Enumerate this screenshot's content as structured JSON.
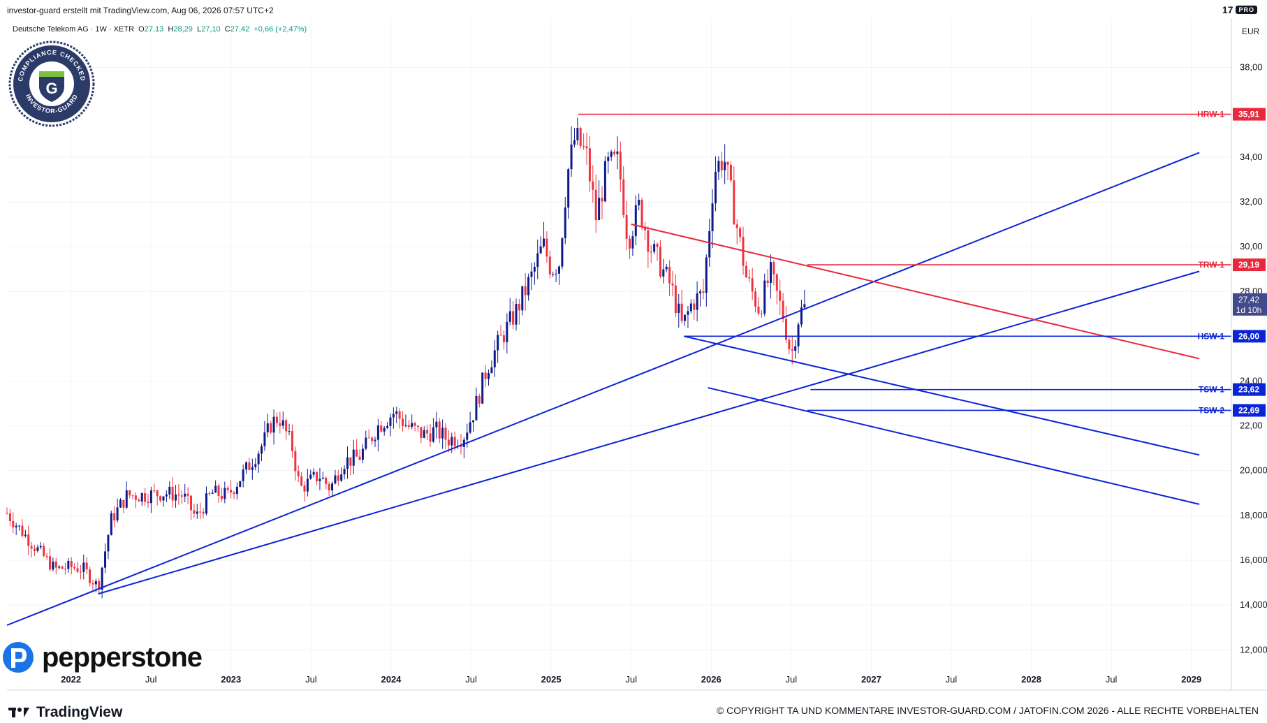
{
  "header": {
    "title": "investor-guard erstellt mit TradingView.com, Aug 06, 2026 07:57 UTC+2",
    "tv_brand": "17",
    "tv_pro": "PRO"
  },
  "symbol": {
    "name": "Deutsche Telekom AG · 1W · XETR",
    "open_label": "O",
    "open": "27,13",
    "high_label": "H",
    "high": "28,29",
    "low_label": "L",
    "low": "27,10",
    "close_label": "C",
    "close": "27,42",
    "change": "+0,66 (+2,47%)"
  },
  "price_axis": {
    "currency": "EUR",
    "ticks": [
      "38,00",
      "34,00",
      "32,00",
      "30,00",
      "28,00",
      "24,00",
      "22,00",
      "20,000",
      "18,000",
      "16,000",
      "14,000",
      "12,000"
    ]
  },
  "badge": {
    "top_text": "COMPLIANCE CHECKED",
    "bottom_text": "INVESTOR-GUARD",
    "letter": "G"
  },
  "footer": {
    "brand": "pepperstone",
    "tv": "TradingView",
    "copyright": "© COPYRIGHT TA UND KOMMENTARE INVESTOR-GUARD.COM / JATOFIN.COM 2026 - ALLE RECHTE VORBEHALTEN"
  },
  "colors": {
    "up": "#0d1b8a",
    "down": "#ef3340",
    "support": "#0b24d6",
    "resistance": "#e8283c",
    "current_price_bg": "#434a8c",
    "grid": "#f0f3fa"
  },
  "chart_data": {
    "type": "candlestick",
    "title": "Deutsche Telekom AG · 1W · XETR",
    "ylabel": "EUR",
    "ylim": [
      10.2,
      40.2
    ],
    "x_tick_labels": [
      "2022",
      "Jul",
      "2023",
      "Jul",
      "2024",
      "Jul",
      "2025",
      "Jul",
      "2026",
      "Jul",
      "2027",
      "Jul",
      "2028",
      "Jul",
      "2029"
    ],
    "x_tick_years": [
      2022.0,
      2022.5,
      2023.0,
      2023.5,
      2024.0,
      2024.5,
      2025.0,
      2025.5,
      2026.0,
      2026.5,
      2027.0,
      2027.5,
      2028.0,
      2028.5,
      2029.0
    ],
    "grid": true,
    "current_price": {
      "value": 27.42,
      "label": "27,42",
      "countdown": "1d 10h"
    },
    "levels": [
      {
        "name": "HRW-1",
        "value": 35.91,
        "label": "35,91",
        "kind": "resistance",
        "from": 2025.17
      },
      {
        "name": "TRW-1",
        "value": 29.19,
        "label": "29,19",
        "kind": "resistance",
        "from": 2026.6
      },
      {
        "name": "HSW-1",
        "value": 26.0,
        "label": "26,00",
        "kind": "support",
        "from": 2025.83
      },
      {
        "name": "TSW-1",
        "value": 23.62,
        "label": "23,62",
        "kind": "support",
        "from": 2026.62
      },
      {
        "name": "TSW-2",
        "value": 22.69,
        "label": "22,69",
        "kind": "support",
        "from": 2026.6
      }
    ],
    "trendlines": [
      {
        "kind": "support",
        "points": [
          [
            2021.6,
            13.1
          ],
          [
            2029.05,
            34.2
          ]
        ]
      },
      {
        "kind": "support",
        "points": [
          [
            2022.17,
            14.5
          ],
          [
            2029.05,
            28.9
          ]
        ]
      },
      {
        "kind": "resistance",
        "points": [
          [
            2025.5,
            31.0
          ],
          [
            2029.05,
            25.0
          ]
        ]
      },
      {
        "kind": "support",
        "points": [
          [
            2025.83,
            26.0
          ],
          [
            2029.05,
            20.7
          ]
        ]
      },
      {
        "kind": "support",
        "points": [
          [
            2025.98,
            23.7
          ],
          [
            2029.05,
            18.5
          ]
        ]
      }
    ],
    "price_path": [
      [
        2021.6,
        18.8,
        18.1
      ],
      [
        2021.75,
        17.2,
        16.8
      ],
      [
        2021.9,
        16.0,
        15.6
      ],
      [
        2022.0,
        16.2,
        15.7
      ],
      [
        2022.08,
        16.3,
        15.6
      ],
      [
        2022.17,
        15.0,
        14.8
      ],
      [
        2022.25,
        17.4,
        17.8
      ],
      [
        2022.35,
        18.6,
        18.9
      ],
      [
        2022.45,
        19.1,
        18.9
      ],
      [
        2022.58,
        18.9,
        19.0
      ],
      [
        2022.7,
        19.2,
        18.9
      ],
      [
        2022.78,
        17.6,
        17.9
      ],
      [
        2022.88,
        19.3,
        19.0
      ],
      [
        2022.98,
        18.6,
        18.9
      ],
      [
        2023.1,
        19.9,
        20.1
      ],
      [
        2023.2,
        20.9,
        21.2
      ],
      [
        2023.25,
        22.0,
        22.1
      ],
      [
        2023.3,
        22.6,
        22.4
      ],
      [
        2023.38,
        20.9,
        21.1
      ],
      [
        2023.43,
        19.0,
        19.2
      ],
      [
        2023.55,
        19.6,
        19.8
      ],
      [
        2023.62,
        18.9,
        19.2
      ],
      [
        2023.7,
        20.6,
        20.4
      ],
      [
        2023.8,
        20.1,
        20.6
      ],
      [
        2023.92,
        21.8,
        22.0
      ],
      [
        2024.02,
        22.5,
        22.6
      ],
      [
        2024.1,
        22.1,
        22.0
      ],
      [
        2024.2,
        21.7,
        21.6
      ],
      [
        2024.28,
        22.0,
        21.8
      ],
      [
        2024.35,
        21.6,
        21.4
      ],
      [
        2024.45,
        21.3,
        21.5
      ],
      [
        2024.52,
        22.4,
        22.7
      ],
      [
        2024.6,
        24.3,
        24.6
      ],
      [
        2024.68,
        25.5,
        25.8
      ],
      [
        2024.78,
        26.9,
        27.1
      ],
      [
        2024.88,
        28.5,
        28.7
      ],
      [
        2024.95,
        29.8,
        30.1
      ],
      [
        2025.0,
        28.8,
        29.0
      ],
      [
        2025.05,
        29.5,
        29.3
      ],
      [
        2025.1,
        32.9,
        33.2
      ],
      [
        2025.15,
        34.7,
        34.9
      ],
      [
        2025.22,
        33.8,
        34.1
      ],
      [
        2025.28,
        31.6,
        31.3
      ],
      [
        2025.35,
        33.2,
        33.6
      ],
      [
        2025.42,
        33.5,
        33.8
      ],
      [
        2025.48,
        30.6,
        30.3
      ],
      [
        2025.55,
        31.5,
        31.8
      ],
      [
        2025.62,
        30.2,
        30.0
      ],
      [
        2025.68,
        29.4,
        29.2
      ],
      [
        2025.75,
        28.5,
        28.2
      ],
      [
        2025.82,
        26.6,
        26.4
      ],
      [
        2025.88,
        27.3,
        27.5
      ],
      [
        2025.95,
        28.1,
        27.9
      ],
      [
        2026.02,
        33.1,
        33.4
      ],
      [
        2026.08,
        33.8,
        34.0
      ],
      [
        2026.15,
        31.5,
        31.3
      ],
      [
        2026.22,
        28.9,
        28.6
      ],
      [
        2026.3,
        27.4,
        27.2
      ],
      [
        2026.37,
        29.1,
        28.8
      ],
      [
        2026.45,
        27.6,
        26.9
      ],
      [
        2026.5,
        25.3,
        25.1
      ],
      [
        2026.55,
        26.8,
        27.0
      ],
      [
        2026.6,
        27.42,
        27.42
      ]
    ]
  }
}
